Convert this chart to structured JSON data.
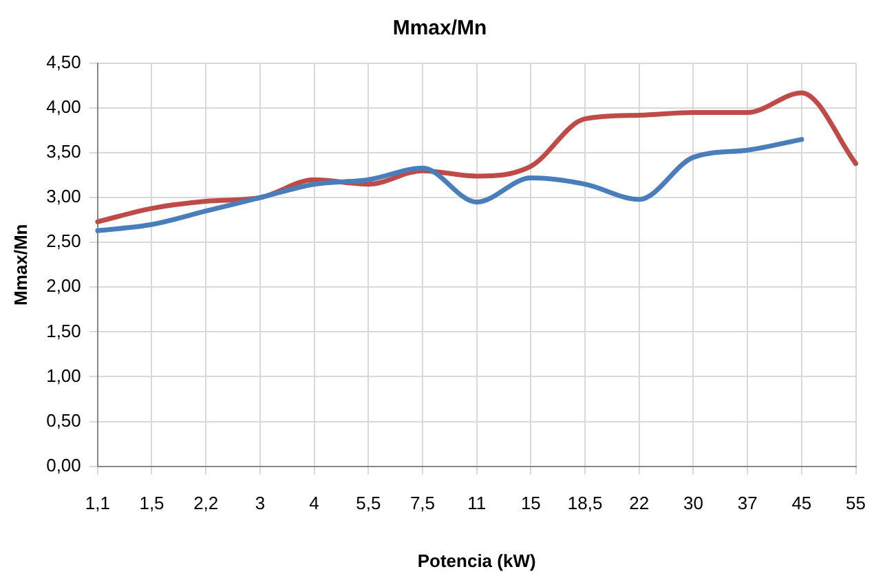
{
  "chart_data": {
    "type": "line",
    "title": "Mmax/Mn",
    "xlabel": "Potencia (kW)",
    "ylabel": "Mmax/Mn",
    "categories": [
      "1,1",
      "1,5",
      "2,2",
      "3",
      "4",
      "5,5",
      "7,5",
      "11",
      "15",
      "18,5",
      "22",
      "30",
      "37",
      "45",
      "55"
    ],
    "series": [
      {
        "color": "#4a7ebb",
        "values": [
          2.63,
          2.7,
          2.85,
          3.0,
          3.15,
          3.2,
          3.33,
          2.95,
          3.22,
          3.15,
          2.98,
          3.45,
          3.53,
          3.65,
          null
        ]
      },
      {
        "color": "#be4b48",
        "values": [
          2.73,
          2.88,
          2.96,
          3.0,
          3.2,
          3.15,
          3.3,
          3.24,
          3.35,
          3.88,
          3.92,
          3.95,
          3.95,
          4.17,
          3.38
        ]
      }
    ],
    "ylim": [
      0,
      4.5
    ],
    "yticks": [
      {
        "value": 0,
        "label": "0,00"
      },
      {
        "value": 0.5,
        "label": "0,50"
      },
      {
        "value": 1,
        "label": "1,00"
      },
      {
        "value": 1.5,
        "label": "1,50"
      },
      {
        "value": 2,
        "label": "2,00"
      },
      {
        "value": 2.5,
        "label": "2,50"
      },
      {
        "value": 3,
        "label": "3,00"
      },
      {
        "value": 3.5,
        "label": "3,50"
      },
      {
        "value": 4,
        "label": "4,00"
      },
      {
        "value": 4.5,
        "label": "4,50"
      }
    ],
    "grid": true,
    "marker": "none",
    "line_style": "solid"
  }
}
